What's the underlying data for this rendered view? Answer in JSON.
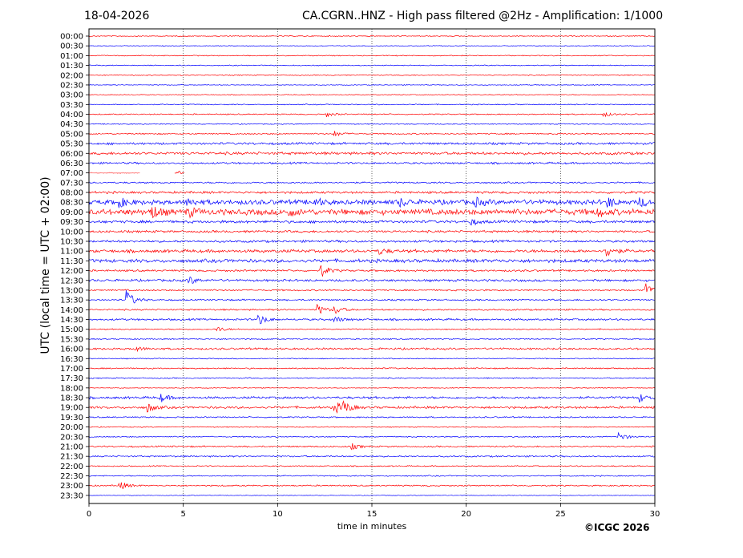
{
  "header": {
    "date": "18-04-2026",
    "title": "CA.CGRN..HNZ - High pass filtered @2Hz - Amplification: 1/1000"
  },
  "footer": {
    "copyright": "©ICGC 2026"
  },
  "chart_data": {
    "type": "line",
    "subtype": "helicorder",
    "title": "CA.CGRN..HNZ - High pass filtered @2Hz - Amplification: 1/1000",
    "xlabel": "time in minutes",
    "ylabel": "UTC (local time = UTC + 02:00)",
    "xlim": [
      0,
      30
    ],
    "x_ticks": [
      0,
      5,
      10,
      15,
      20,
      25,
      30
    ],
    "x_tick_labels": [
      "0",
      "5",
      "10",
      "15",
      "20",
      "25",
      "30"
    ],
    "grid": "vertical dotted at each x tick",
    "colors": {
      "odd": "#0000ff",
      "even": "#ff0000"
    },
    "rows": [
      "00:00",
      "00:30",
      "01:00",
      "01:30",
      "02:00",
      "02:30",
      "03:00",
      "03:30",
      "04:00",
      "04:30",
      "05:00",
      "05:30",
      "06:00",
      "06:30",
      "07:00",
      "07:30",
      "08:00",
      "08:30",
      "09:00",
      "09:30",
      "10:00",
      "10:30",
      "11:00",
      "11:30",
      "12:00",
      "12:30",
      "13:00",
      "13:30",
      "14:00",
      "14:30",
      "15:00",
      "15:30",
      "16:00",
      "16:30",
      "17:00",
      "17:30",
      "18:00",
      "18:30",
      "19:00",
      "19:30",
      "20:00",
      "20:30",
      "21:00",
      "21:30",
      "22:00",
      "22:30",
      "23:00",
      "23:30"
    ],
    "noise_level": [
      0.05,
      0.04,
      0.05,
      0.05,
      0.05,
      0.04,
      0.04,
      0.05,
      0.06,
      0.05,
      0.07,
      0.12,
      0.14,
      0.1,
      0.05,
      0.08,
      0.12,
      0.25,
      0.3,
      0.14,
      0.12,
      0.12,
      0.16,
      0.18,
      0.1,
      0.12,
      0.08,
      0.08,
      0.08,
      0.1,
      0.06,
      0.06,
      0.1,
      0.05,
      0.07,
      0.06,
      0.04,
      0.12,
      0.12,
      0.07,
      0.05,
      0.06,
      0.08,
      0.08,
      0.06,
      0.06,
      0.07,
      0.03
    ],
    "events": [
      {
        "row": "04:00",
        "minute": 12.6,
        "amp": 0.3
      },
      {
        "row": "04:00",
        "minute": 27.3,
        "amp": 0.3
      },
      {
        "row": "05:00",
        "minute": 13.0,
        "amp": 0.35
      },
      {
        "row": "07:00",
        "minute": 4.7,
        "amp": 0.25
      },
      {
        "row": "08:30",
        "minute": 1.6,
        "amp": 0.6
      },
      {
        "row": "08:30",
        "minute": 5.2,
        "amp": 0.5
      },
      {
        "row": "08:30",
        "minute": 12.0,
        "amp": 0.45
      },
      {
        "row": "08:30",
        "minute": 16.5,
        "amp": 0.45
      },
      {
        "row": "08:30",
        "minute": 20.5,
        "amp": 0.5
      },
      {
        "row": "08:30",
        "minute": 27.5,
        "amp": 0.6
      },
      {
        "row": "08:30",
        "minute": 29.2,
        "amp": 0.55
      },
      {
        "row": "09:00",
        "minute": 3.3,
        "amp": 0.9
      },
      {
        "row": "09:00",
        "minute": 5.2,
        "amp": 0.6
      },
      {
        "row": "09:00",
        "minute": 10.6,
        "amp": 0.5
      },
      {
        "row": "09:00",
        "minute": 26.9,
        "amp": 0.6
      },
      {
        "row": "09:30",
        "minute": 20.2,
        "amp": 0.45
      },
      {
        "row": "11:00",
        "minute": 27.4,
        "amp": 0.9
      },
      {
        "row": "11:00",
        "minute": 15.4,
        "amp": 0.4
      },
      {
        "row": "12:00",
        "minute": 12.3,
        "amp": 0.8
      },
      {
        "row": "12:30",
        "minute": 5.3,
        "amp": 0.5
      },
      {
        "row": "13:00",
        "minute": 29.5,
        "amp": 0.9
      },
      {
        "row": "13:30",
        "minute": 2.0,
        "amp": 1.2
      },
      {
        "row": "14:00",
        "minute": 12.1,
        "amp": 0.7
      },
      {
        "row": "14:00",
        "minute": 13.0,
        "amp": 0.6
      },
      {
        "row": "14:30",
        "minute": 9.0,
        "amp": 0.7
      },
      {
        "row": "14:30",
        "minute": 13.0,
        "amp": 0.4
      },
      {
        "row": "15:00",
        "minute": 6.8,
        "amp": 0.35
      },
      {
        "row": "16:00",
        "minute": 2.4,
        "amp": 0.35
      },
      {
        "row": "18:30",
        "minute": 3.8,
        "amp": 0.5
      },
      {
        "row": "18:30",
        "minute": 29.2,
        "amp": 0.5
      },
      {
        "row": "19:00",
        "minute": 3.1,
        "amp": 0.6
      },
      {
        "row": "19:00",
        "minute": 13.0,
        "amp": 0.8
      },
      {
        "row": "19:00",
        "minute": 13.5,
        "amp": 0.7
      },
      {
        "row": "20:30",
        "minute": 28.1,
        "amp": 0.6
      },
      {
        "row": "21:00",
        "minute": 13.9,
        "amp": 0.4
      },
      {
        "row": "23:00",
        "minute": 1.6,
        "amp": 0.6
      }
    ],
    "gaps": [
      {
        "row": "07:00",
        "from_minute": 2.7,
        "to_minute": 4.5
      },
      {
        "row": "07:00",
        "from_minute": 5.1,
        "to_minute": 30.0
      }
    ]
  }
}
